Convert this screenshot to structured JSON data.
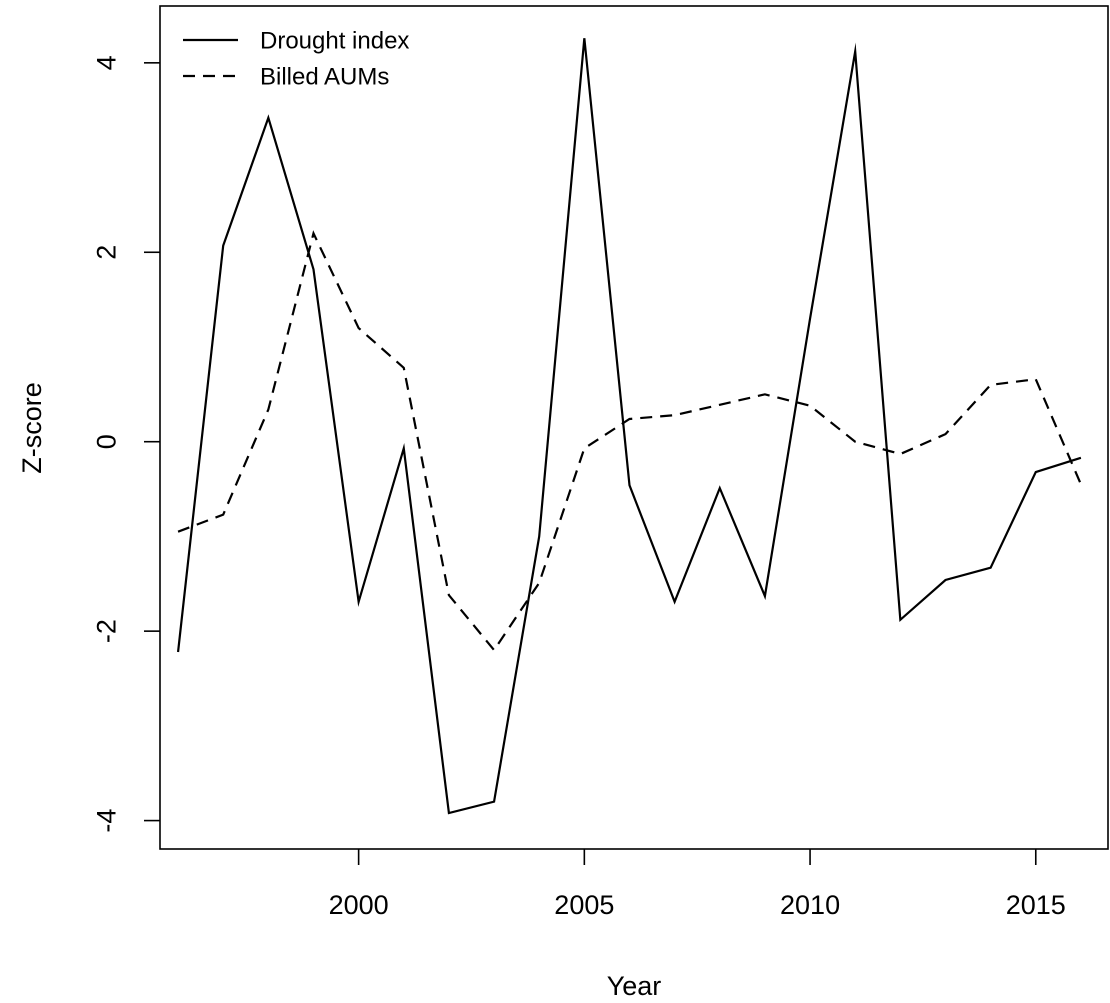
{
  "chart_data": {
    "type": "line",
    "title": "",
    "xlabel": "Year",
    "ylabel": "Z-score",
    "xlim": [
      1995.6,
      2016.6
    ],
    "ylim": [
      -4.3,
      4.6
    ],
    "xticks": [
      2000,
      2005,
      2010,
      2015
    ],
    "yticks": [
      -4,
      -2,
      0,
      2,
      4
    ],
    "grid": false,
    "legend_position": "top-left",
    "x": [
      1996,
      1997,
      1998,
      1999,
      2000,
      2001,
      2002,
      2003,
      2004,
      2005,
      2006,
      2007,
      2008,
      2009,
      2010,
      2011,
      2012,
      2013,
      2014,
      2015,
      2016
    ],
    "series": [
      {
        "name": "Drought index",
        "line_style": "solid",
        "color": "#000000",
        "values": [
          -2.22,
          2.07,
          3.42,
          1.82,
          -1.69,
          -0.07,
          -3.92,
          -3.8,
          -1.0,
          4.26,
          -0.46,
          -1.69,
          -0.49,
          -1.63,
          1.3,
          4.12,
          -1.88,
          -1.46,
          -1.33,
          -0.32,
          -0.17
        ]
      },
      {
        "name": "Billed AUMs",
        "line_style": "dashed",
        "color": "#000000",
        "values": [
          -0.95,
          -0.77,
          0.34,
          2.2,
          1.2,
          0.78,
          -1.62,
          -2.2,
          -1.49,
          -0.07,
          0.24,
          0.28,
          0.39,
          0.5,
          0.38,
          0.0,
          -0.13,
          0.08,
          0.6,
          0.66,
          -0.45
        ]
      }
    ]
  }
}
